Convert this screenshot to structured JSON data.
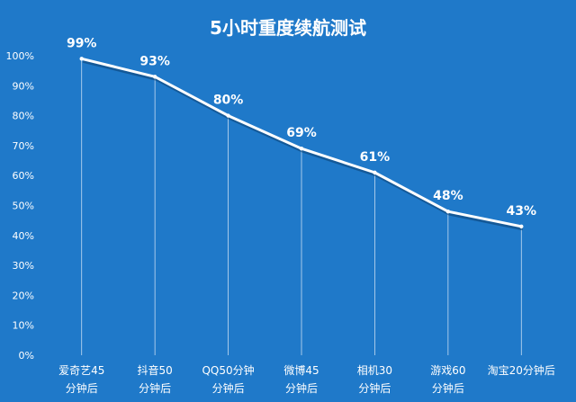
{
  "chart_data": {
    "type": "line",
    "title": "5小时重度续航测试",
    "categories": [
      [
        "爱奇艺45",
        "分钟后"
      ],
      [
        "抖音50",
        "分钟后"
      ],
      [
        "QQ50分钟",
        "分钟后"
      ],
      [
        "微博45",
        "分钟后"
      ],
      [
        "相机30",
        "分钟后"
      ],
      [
        "游戏60",
        "分钟后"
      ],
      [
        "淘宝20分钟后"
      ]
    ],
    "values": [
      99,
      93,
      80,
      69,
      61,
      48,
      43
    ],
    "data_labels": [
      "99%",
      "93%",
      "80%",
      "69%",
      "61%",
      "48%",
      "43%"
    ],
    "yticks": [
      "0%",
      "10%",
      "20%",
      "30%",
      "40%",
      "50%",
      "60%",
      "70%",
      "80%",
      "90%",
      "100%"
    ],
    "ylim": [
      0,
      100
    ],
    "xlabel": "",
    "ylabel": "",
    "grid": false,
    "drop_lines": true,
    "colors": {
      "background": "#1f79c9",
      "line": "#ffffff",
      "shadow": "#0b3f70",
      "text": "#ffffff"
    }
  }
}
